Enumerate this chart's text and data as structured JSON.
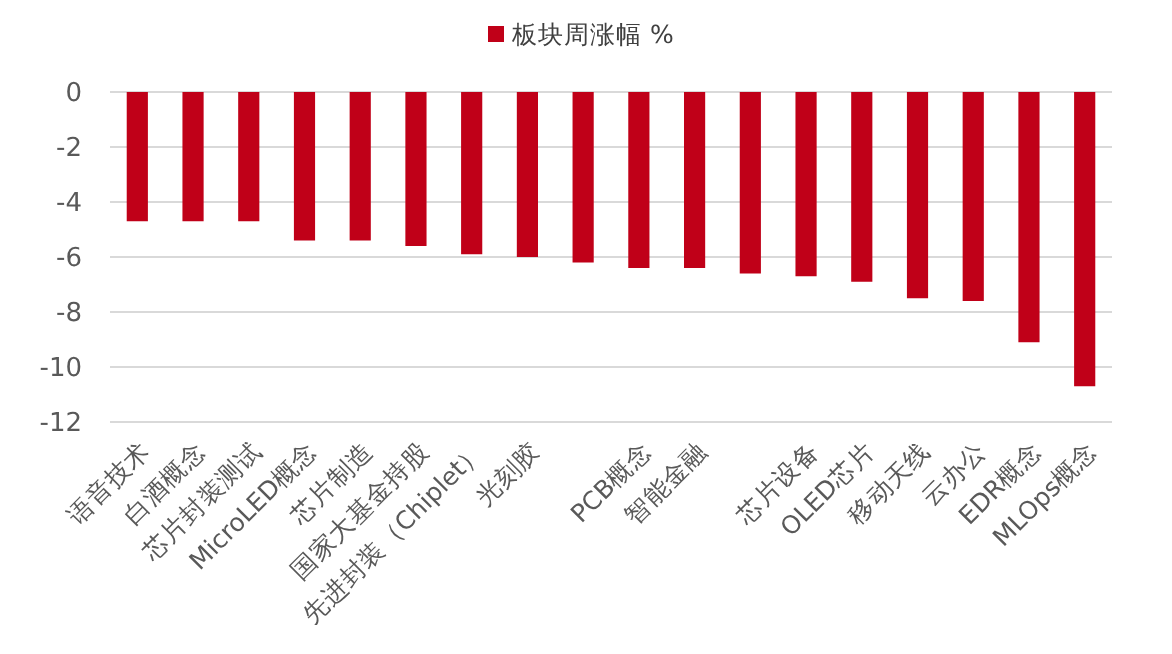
{
  "chart_data": {
    "type": "bar",
    "categories": [
      "语音技术",
      "白酒概念",
      "芯片封装测试",
      "MicroLED概念",
      "芯片制造",
      "国家大基金持股",
      "先进封装（Chiplet）",
      "光刻胶",
      null,
      "PCB概念",
      "智能金融",
      null,
      "芯片设备",
      "OLED芯片",
      "移动天线",
      "云办公",
      "EDR概念",
      "MLOps概念"
    ],
    "series": [
      {
        "name": "板块周涨幅 %",
        "color": "#c00018",
        "values": [
          -4.7,
          -4.7,
          -4.7,
          -5.4,
          -5.4,
          -5.6,
          -5.9,
          -6.0,
          -6.2,
          -6.4,
          -6.4,
          -6.6,
          -6.7,
          -6.9,
          -7.5,
          -7.6,
          -9.1,
          -10.7
        ]
      }
    ],
    "ylim": [
      -12,
      0
    ],
    "yticks": [
      0,
      -2,
      -4,
      -6,
      -8,
      -10,
      -12
    ],
    "grid": "y",
    "legend": "top"
  }
}
